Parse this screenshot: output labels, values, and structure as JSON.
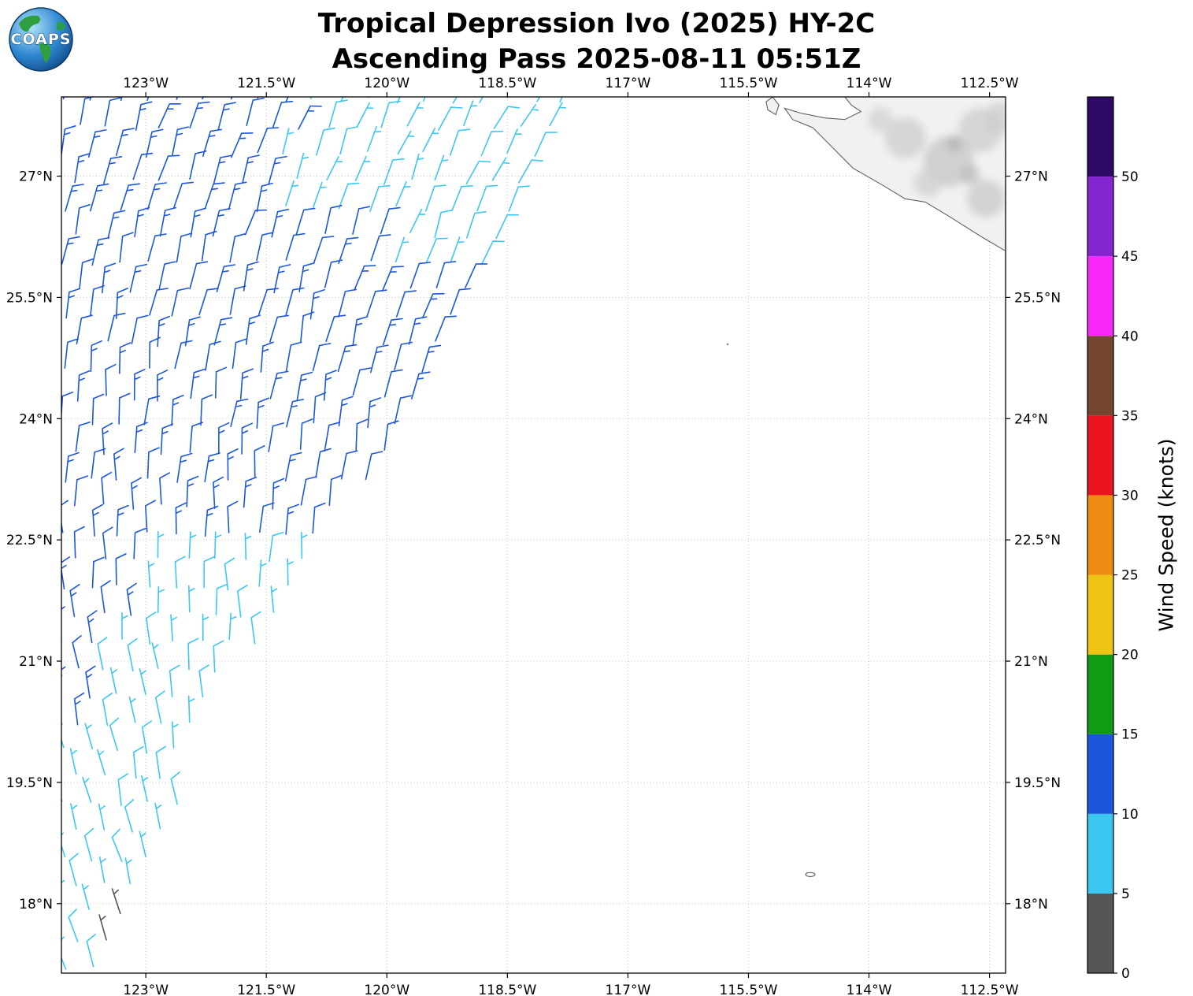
{
  "title": {
    "line1": "Tropical Depression Ivo (2025) HY-2C",
    "line2": "Ascending Pass 2025-08-11 05:51Z"
  },
  "logo": {
    "text": "COAPS"
  },
  "colorbar": {
    "label": "Wind Speed (knots)",
    "vmin": 0,
    "vmax": 55,
    "tick_values": [
      0,
      5,
      10,
      15,
      20,
      25,
      30,
      35,
      40,
      45,
      50
    ],
    "segments": [
      {
        "from": 0,
        "to": 5,
        "color": "#555555"
      },
      {
        "from": 5,
        "to": 10,
        "color": "#3CC7F0"
      },
      {
        "from": 10,
        "to": 15,
        "color": "#1C56DB"
      },
      {
        "from": 15,
        "to": 20,
        "color": "#0F9C14"
      },
      {
        "from": 20,
        "to": 25,
        "color": "#F0C414"
      },
      {
        "from": 25,
        "to": 30,
        "color": "#F08C14"
      },
      {
        "from": 30,
        "to": 35,
        "color": "#EC1420"
      },
      {
        "from": 35,
        "to": 40,
        "color": "#74452F"
      },
      {
        "from": 40,
        "to": 45,
        "color": "#F828F8"
      },
      {
        "from": 45,
        "to": 50,
        "color": "#8426CF"
      },
      {
        "from": 50,
        "to": 55,
        "color": "#2D0A66"
      }
    ]
  },
  "chart_data": {
    "type": "wind_barb_map",
    "title": "Tropical Depression Ivo (2025) HY-2C — Ascending Pass 2025-08-11 05:51Z",
    "satellite": "HY-2C scatterometer",
    "axes": {
      "lon_min": -124.05,
      "lon_max": -112.3,
      "lat_min": 17.14,
      "lat_max": 27.98,
      "grid": "dotted",
      "x_ticks": [
        {
          "lon": -123,
          "label": "123°W"
        },
        {
          "lon": -121.5,
          "label": "121.5°W"
        },
        {
          "lon": -120,
          "label": "120°W"
        },
        {
          "lon": -118.5,
          "label": "118.5°W"
        },
        {
          "lon": -117,
          "label": "117°W"
        },
        {
          "lon": -115.5,
          "label": "115.5°W"
        },
        {
          "lon": -114,
          "label": "114°W"
        },
        {
          "lon": -112.5,
          "label": "112.5°W"
        }
      ],
      "y_ticks": [
        {
          "lat": 27,
          "label": "27°N"
        },
        {
          "lat": 25.5,
          "label": "25.5°N"
        },
        {
          "lat": 24,
          "label": "24°N"
        },
        {
          "lat": 22.5,
          "label": "22.5°N"
        },
        {
          "lat": 21,
          "label": "21°N"
        },
        {
          "lat": 19.5,
          "label": "19.5°N"
        },
        {
          "lat": 18,
          "label": "18°N"
        }
      ]
    },
    "wind_field": {
      "description": "Diagonal satellite swath of wind barbs over the ocean west of Baja California; winds mostly 10-15 kt (blue) in the swath core, 5-10 kt (cyan) along the upper-right and southern portions, a few calm <5 kt (gray) barbs near 17.8N 123.5W",
      "barb_speed_colors": {
        "calm_0_5": "#555555",
        "light_5_10": "#3CC7F0",
        "moderate_10_15": "#1C56DB"
      },
      "grid_step_deg": {
        "lat": 0.335,
        "lon": 0.345
      },
      "swath_left_edge_lon": -124.02,
      "swath_right_edge": [
        [
          17.1,
          -123.35
        ],
        [
          18,
          -123.05
        ],
        [
          19,
          -122.7
        ],
        [
          20,
          -122.3
        ],
        [
          21,
          -121.7
        ],
        [
          22,
          -121.1
        ],
        [
          23,
          -120.35
        ],
        [
          24,
          -119.6
        ],
        [
          25,
          -119.15
        ],
        [
          26,
          -118.7
        ],
        [
          27,
          -118.15
        ],
        [
          28,
          -117.6
        ]
      ],
      "direction_field": {
        "base_from_deg": 22,
        "lat_ref": 27.9,
        "per_deg_lat": 3.6,
        "lon_ref": -121.5,
        "per_deg_lon": 2.0,
        "jitter_deg": 14
      },
      "speed_field": {
        "blue_kt": [
          10.5,
          14.3
        ],
        "cyan_kt": [
          6,
          9.4
        ],
        "calm_kt": 3,
        "calm_patch": {
          "lat": [
            17.55,
            17.95
          ],
          "lon": [
            -123.75,
            -123.15
          ]
        }
      }
    },
    "coastline": {
      "name": "Baja California / Vizcaino Peninsula",
      "mainland": [
        [
          -114.3,
          27.98
        ],
        [
          -114.22,
          27.88
        ],
        [
          -114.1,
          27.8
        ],
        [
          -114.3,
          27.7
        ],
        [
          -114.55,
          27.72
        ],
        [
          -114.85,
          27.78
        ],
        [
          -115.05,
          27.84
        ],
        [
          -114.95,
          27.7
        ],
        [
          -114.7,
          27.6
        ],
        [
          -114.5,
          27.4
        ],
        [
          -114.2,
          27.1
        ],
        [
          -113.85,
          26.9
        ],
        [
          -113.55,
          26.72
        ],
        [
          -113.3,
          26.68
        ],
        [
          -113.0,
          26.5
        ],
        [
          -112.6,
          26.25
        ],
        [
          -112.31,
          26.08
        ]
      ],
      "cedros_island": [
        [
          -115.2,
          27.98
        ],
        [
          -115.12,
          27.88
        ],
        [
          -115.16,
          27.76
        ],
        [
          -115.26,
          27.82
        ],
        [
          -115.28,
          27.92
        ]
      ],
      "clarion_island": {
        "lon": -114.73,
        "lat": 18.36
      },
      "small_feature_dot": {
        "lon": -115.76,
        "lat": 24.92
      }
    }
  }
}
